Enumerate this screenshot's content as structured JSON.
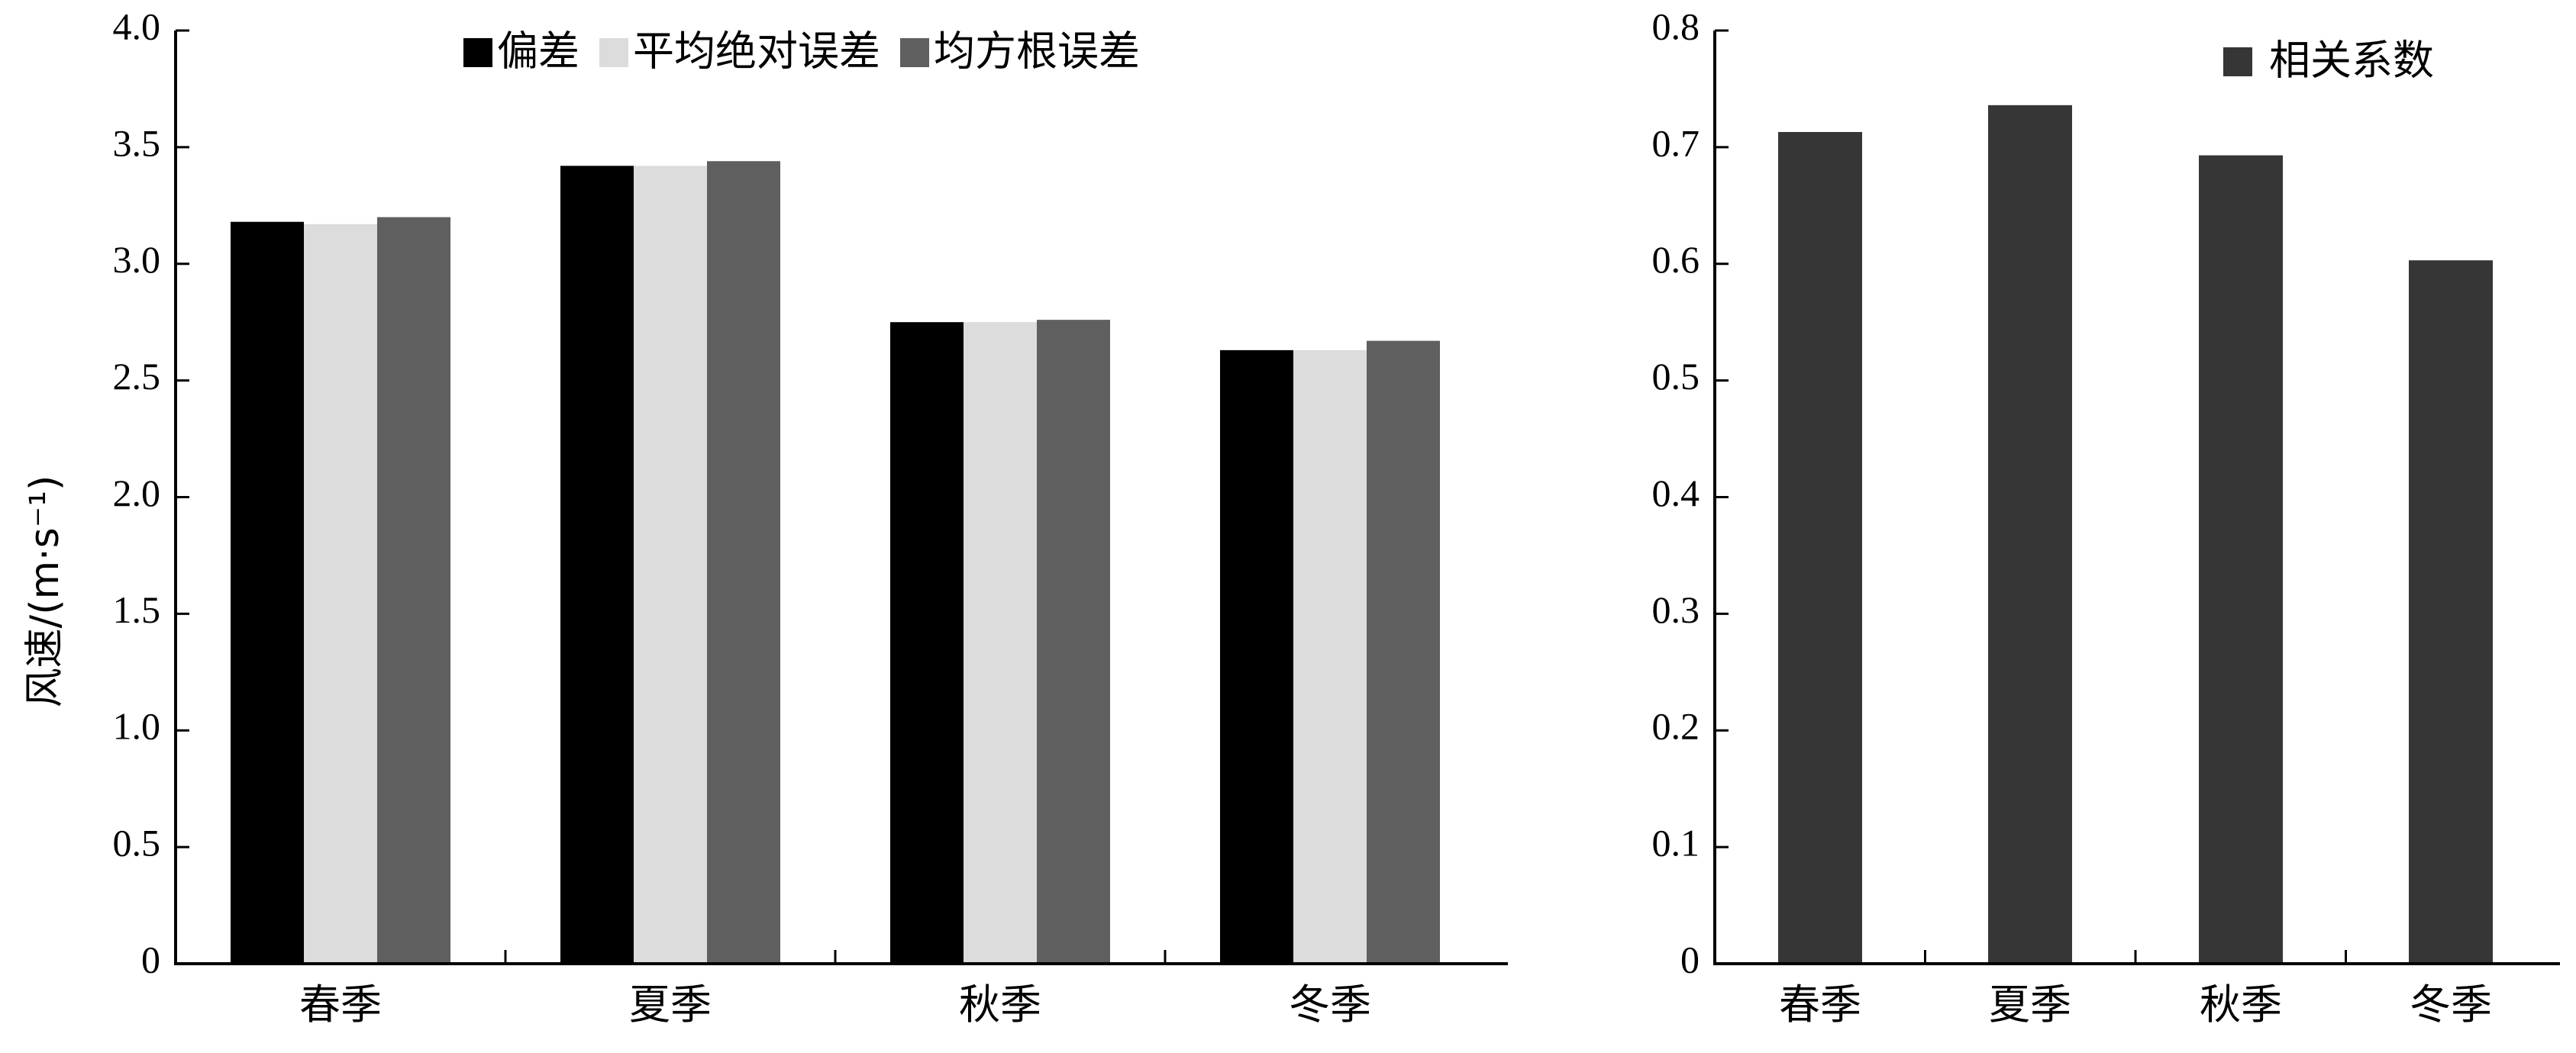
{
  "chart_data": [
    {
      "type": "bar",
      "categories": [
        "春季",
        "夏季",
        "秋季",
        "冬季"
      ],
      "series": [
        {
          "name": "偏差",
          "color": "#000000",
          "values": [
            3.18,
            3.42,
            2.75,
            2.63
          ]
        },
        {
          "name": "平均绝对误差",
          "color": "#dcdcdc",
          "values": [
            3.17,
            3.42,
            2.75,
            2.63
          ]
        },
        {
          "name": "均方根误差",
          "color": "#5f5f5f",
          "values": [
            3.2,
            3.44,
            2.76,
            2.67
          ]
        }
      ],
      "ylabel": "风速/(m·s⁻¹)",
      "ylim": [
        0,
        4.0
      ],
      "yticks": [
        "0",
        "0.5",
        "1.0",
        "1.5",
        "2.0",
        "2.5",
        "3.0",
        "3.5",
        "4.0"
      ],
      "legend_position": "top",
      "grid": false
    },
    {
      "type": "bar",
      "categories": [
        "春季",
        "夏季",
        "秋季",
        "冬季"
      ],
      "series": [
        {
          "name": "相关系数",
          "color": "#363636",
          "values": [
            0.713,
            0.736,
            0.693,
            0.603
          ]
        }
      ],
      "ylim": [
        0,
        0.8
      ],
      "yticks": [
        "0",
        "0.1",
        "0.2",
        "0.3",
        "0.4",
        "0.5",
        "0.6",
        "0.7",
        "0.8"
      ],
      "legend_position": "top-right",
      "grid": false
    }
  ]
}
